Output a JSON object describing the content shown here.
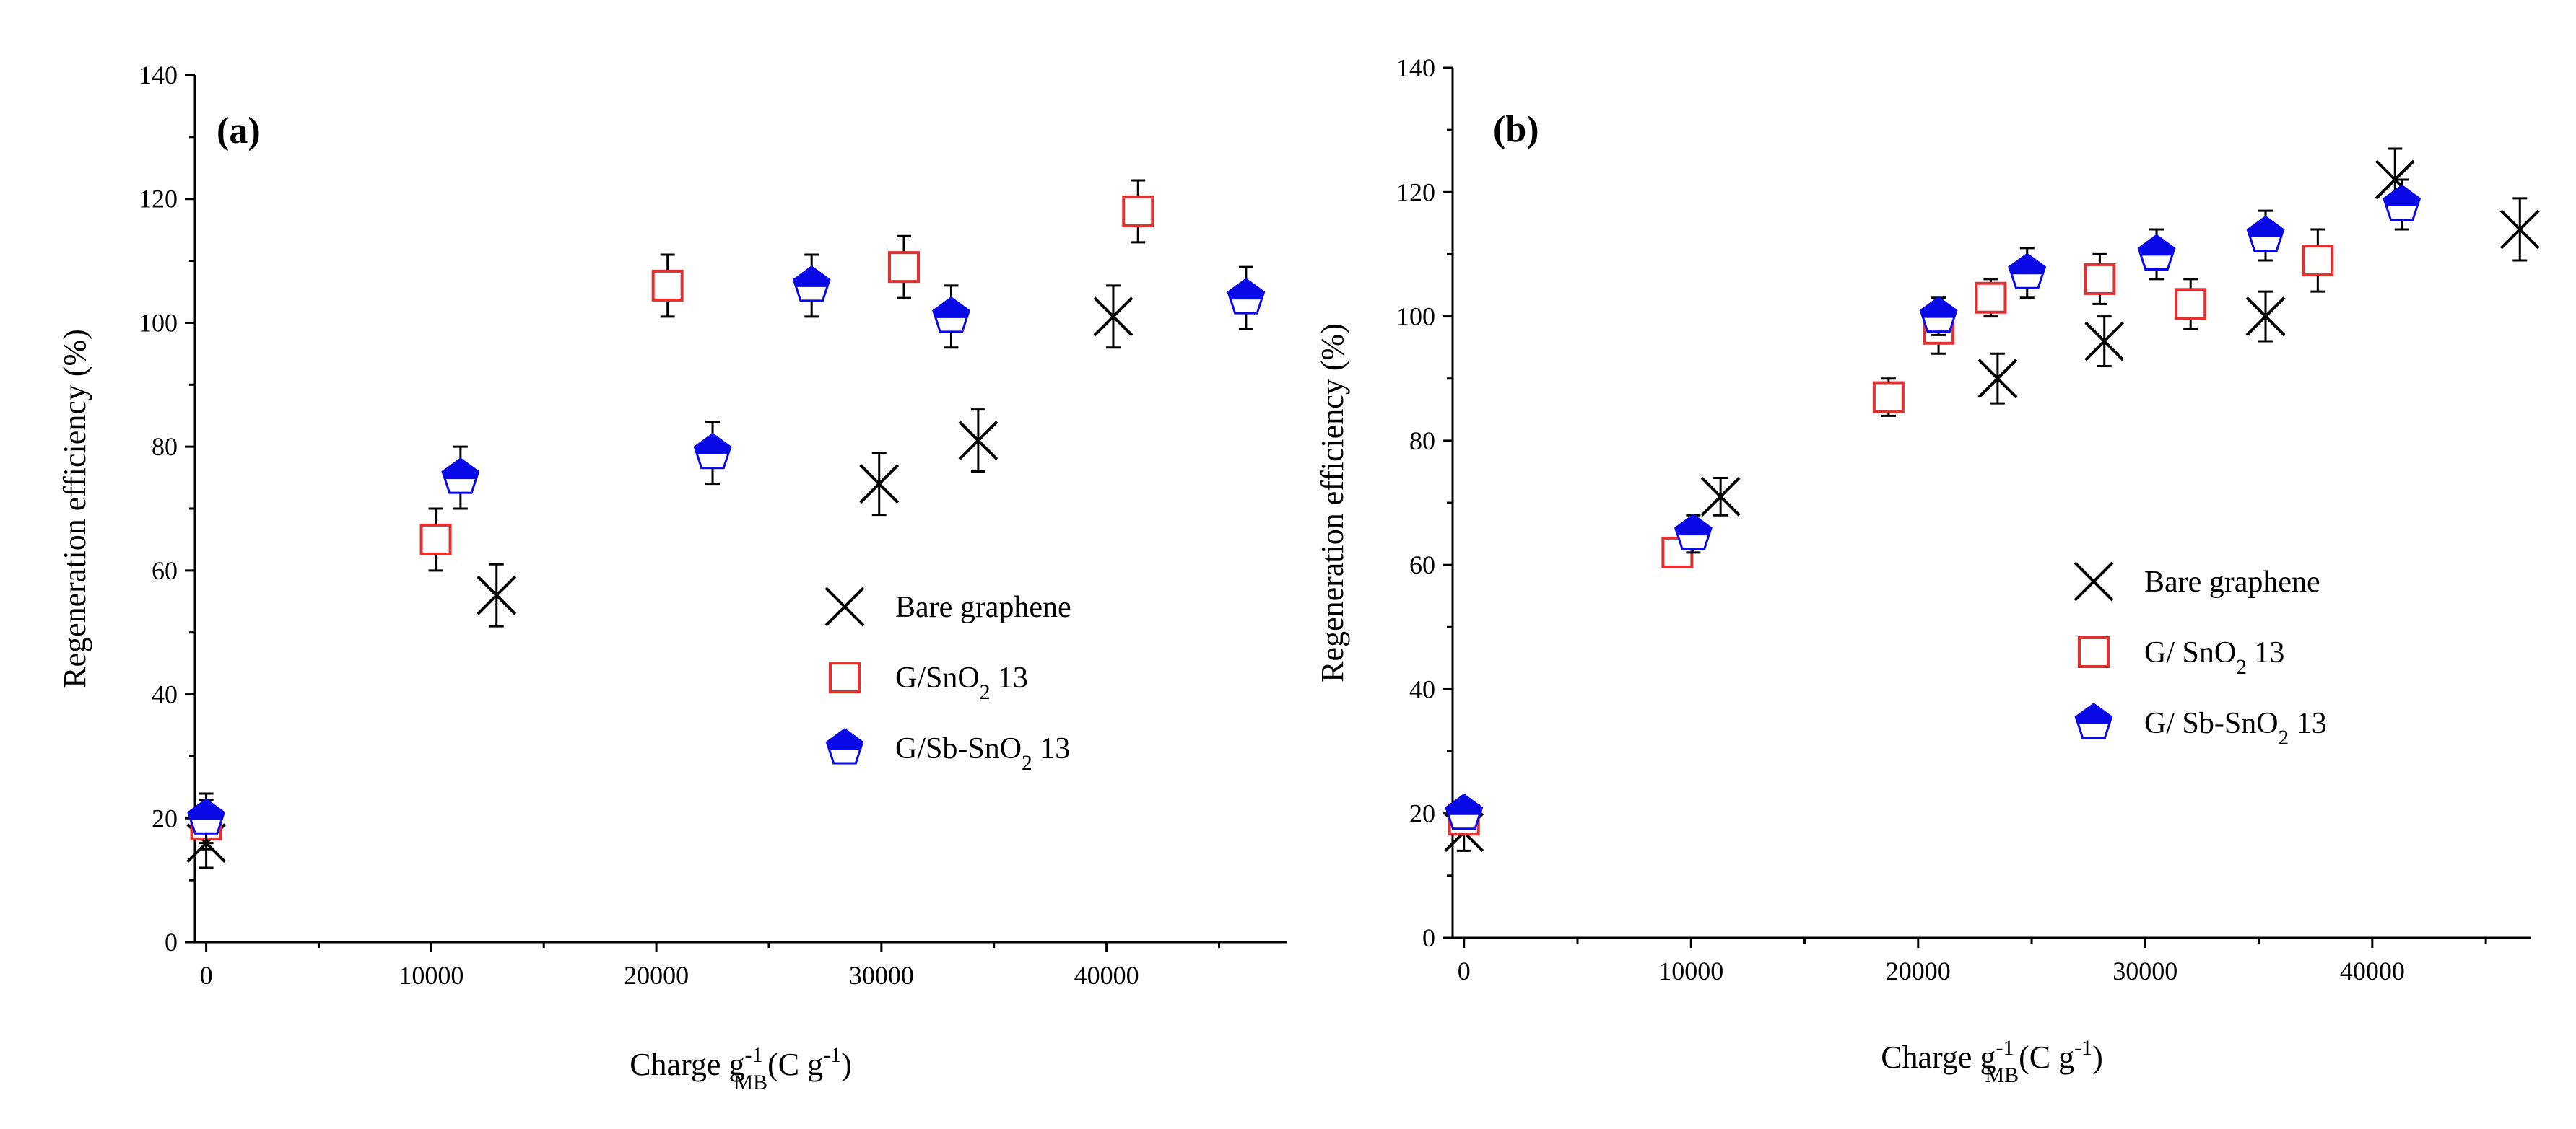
{
  "chart_data": [
    {
      "type": "scatter",
      "panel_label": "(a)",
      "xlabel": {
        "main": "Charge g",
        "sub": "MB",
        "sup": "-1",
        "unit": "(C g",
        "unit_sup": "-1",
        "unit_close": ")"
      },
      "ylabel": "Regeneration efficiency (%)",
      "xlim": [
        -500,
        48000
      ],
      "ylim": [
        0,
        140
      ],
      "xticks": [
        0,
        10000,
        20000,
        30000,
        40000
      ],
      "yticks": [
        0,
        20,
        40,
        60,
        80,
        100,
        120,
        140
      ],
      "legend_position": "center-right",
      "series": [
        {
          "name": "Bare graphene",
          "marker": "x",
          "color": "#000000",
          "points": [
            {
              "x": 0,
              "y": 16,
              "err": 4
            },
            {
              "x": 12900,
              "y": 56,
              "err": 5
            },
            {
              "x": 29900,
              "y": 74,
              "err": 5
            },
            {
              "x": 34300,
              "y": 81,
              "err": 5
            },
            {
              "x": 40300,
              "y": 101,
              "err": 5
            }
          ]
        },
        {
          "name": "G/SnO2 13",
          "marker": "square-open",
          "color": "#e03030",
          "points": [
            {
              "x": 0,
              "y": 19,
              "err": 4
            },
            {
              "x": 10200,
              "y": 65,
              "err": 5
            },
            {
              "x": 20500,
              "y": 106,
              "err": 5
            },
            {
              "x": 31000,
              "y": 109,
              "err": 5
            },
            {
              "x": 41400,
              "y": 118,
              "err": 5
            }
          ]
        },
        {
          "name": "G/Sb-SnO2 13",
          "marker": "pentagon-half",
          "color": "#0a0ae6",
          "points": [
            {
              "x": 0,
              "y": 20,
              "err": 4
            },
            {
              "x": 11300,
              "y": 75,
              "err": 5
            },
            {
              "x": 22500,
              "y": 79,
              "err": 5
            },
            {
              "x": 26900,
              "y": 106,
              "err": 5
            },
            {
              "x": 33100,
              "y": 101,
              "err": 5
            },
            {
              "x": 46200,
              "y": 104,
              "err": 5
            }
          ]
        }
      ],
      "legend_labels": [
        {
          "text": "Bare graphene"
        },
        {
          "text": "G/SnO",
          "sub": "2",
          "tail": " 13"
        },
        {
          "text": "G/Sb-SnO",
          "sub": "2",
          "tail": " 13"
        }
      ]
    },
    {
      "type": "scatter",
      "panel_label": "(b)",
      "xlabel": {
        "main": "Charge g",
        "sub": "MB",
        "sup": "-1",
        "unit": "(C g",
        "unit_sup": "-1",
        "unit_close": ")"
      },
      "ylabel": "Regeneration efficiency (%)",
      "xlim": [
        -500,
        47000
      ],
      "ylim": [
        0,
        140
      ],
      "xticks": [
        0,
        10000,
        20000,
        30000,
        40000
      ],
      "yticks": [
        0,
        20,
        40,
        60,
        80,
        100,
        120,
        140
      ],
      "legend_position": "center-right",
      "series": [
        {
          "name": "Bare graphene",
          "marker": "x",
          "color": "#000000",
          "points": [
            {
              "x": 0,
              "y": 17,
              "err": 3
            },
            {
              "x": 11300,
              "y": 71,
              "err": 3
            },
            {
              "x": 23500,
              "y": 90,
              "err": 4
            },
            {
              "x": 28200,
              "y": 96,
              "err": 4
            },
            {
              "x": 35300,
              "y": 100,
              "err": 4
            },
            {
              "x": 41000,
              "y": 122,
              "err": 5
            },
            {
              "x": 46500,
              "y": 114,
              "err": 5
            }
          ]
        },
        {
          "name": "G/ SnO2 13",
          "marker": "square-open",
          "color": "#e03030",
          "points": [
            {
              "x": 0,
              "y": 19,
              "err": 2
            },
            {
              "x": 9400,
              "y": 62,
              "err": 2
            },
            {
              "x": 18700,
              "y": 87,
              "err": 3
            },
            {
              "x": 20900,
              "y": 98,
              "err": 4
            },
            {
              "x": 23200,
              "y": 103,
              "err": 3
            },
            {
              "x": 28000,
              "y": 106,
              "err": 4
            },
            {
              "x": 32000,
              "y": 102,
              "err": 4
            },
            {
              "x": 37600,
              "y": 109,
              "err": 5
            }
          ]
        },
        {
          "name": "G/ Sb-SnO2 13",
          "marker": "pentagon-half",
          "color": "#0a0ae6",
          "points": [
            {
              "x": 0,
              "y": 20,
              "err": 2
            },
            {
              "x": 10100,
              "y": 65,
              "err": 3
            },
            {
              "x": 20900,
              "y": 100,
              "err": 3
            },
            {
              "x": 24800,
              "y": 107,
              "err": 4
            },
            {
              "x": 30500,
              "y": 110,
              "err": 4
            },
            {
              "x": 35300,
              "y": 113,
              "err": 4
            },
            {
              "x": 41300,
              "y": 118,
              "err": 4
            }
          ]
        }
      ],
      "legend_labels": [
        {
          "text": "Bare graphene"
        },
        {
          "text": "G/ SnO",
          "sub": "2",
          "tail": " 13"
        },
        {
          "text": "G/ Sb-SnO",
          "sub": "2",
          "tail": " 13"
        }
      ]
    }
  ]
}
